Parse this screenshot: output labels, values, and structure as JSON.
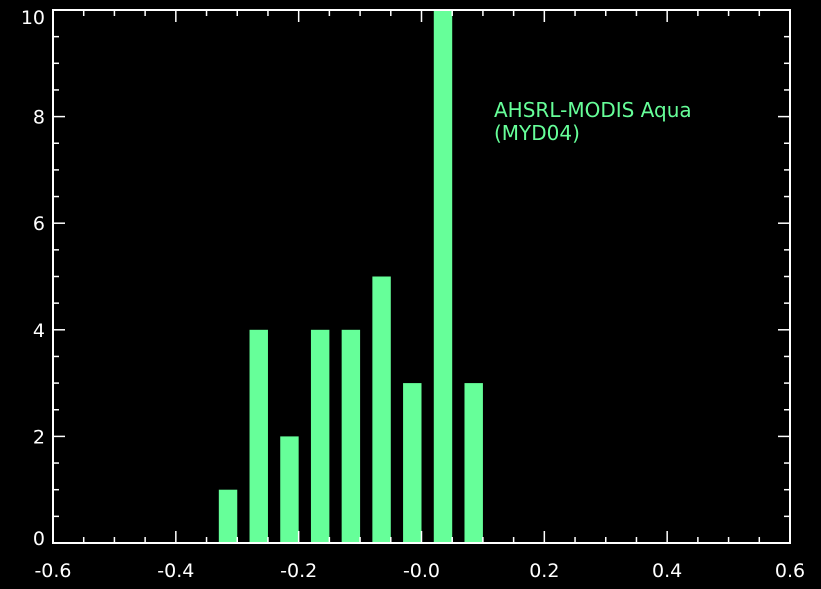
{
  "chart_data": {
    "type": "bar",
    "title": "",
    "xlabel": "",
    "ylabel": "",
    "xlim": [
      -0.6,
      0.6
    ],
    "ylim": [
      0,
      10
    ],
    "bin_width": 0.03,
    "bars": [
      {
        "x": -0.315,
        "value": 1
      },
      {
        "x": -0.265,
        "value": 4
      },
      {
        "x": -0.215,
        "value": 2
      },
      {
        "x": -0.165,
        "value": 4
      },
      {
        "x": -0.115,
        "value": 4
      },
      {
        "x": -0.065,
        "value": 5
      },
      {
        "x": -0.015,
        "value": 3
      },
      {
        "x": 0.035,
        "value": 10
      },
      {
        "x": 0.085,
        "value": 3
      }
    ],
    "x_ticks": [
      "-0.6",
      "-0.4",
      "-0.2",
      "-0.0",
      "0.2",
      "0.4",
      "0.6"
    ],
    "x_tick_values": [
      -0.6,
      -0.4,
      -0.2,
      0.0,
      0.2,
      0.4,
      0.6
    ],
    "y_ticks": [
      "0",
      "2",
      "4",
      "6",
      "8",
      "10"
    ],
    "y_tick_values": [
      0,
      2,
      4,
      6,
      8,
      10
    ],
    "annotation": {
      "lines": [
        "AHSRL-MODIS Aqua",
        "(MYD04)"
      ]
    },
    "colors": {
      "bar": "#66ff99",
      "axes": "#ffffff",
      "background": "#000000",
      "annotation": "#66ff99"
    },
    "grid": false
  }
}
